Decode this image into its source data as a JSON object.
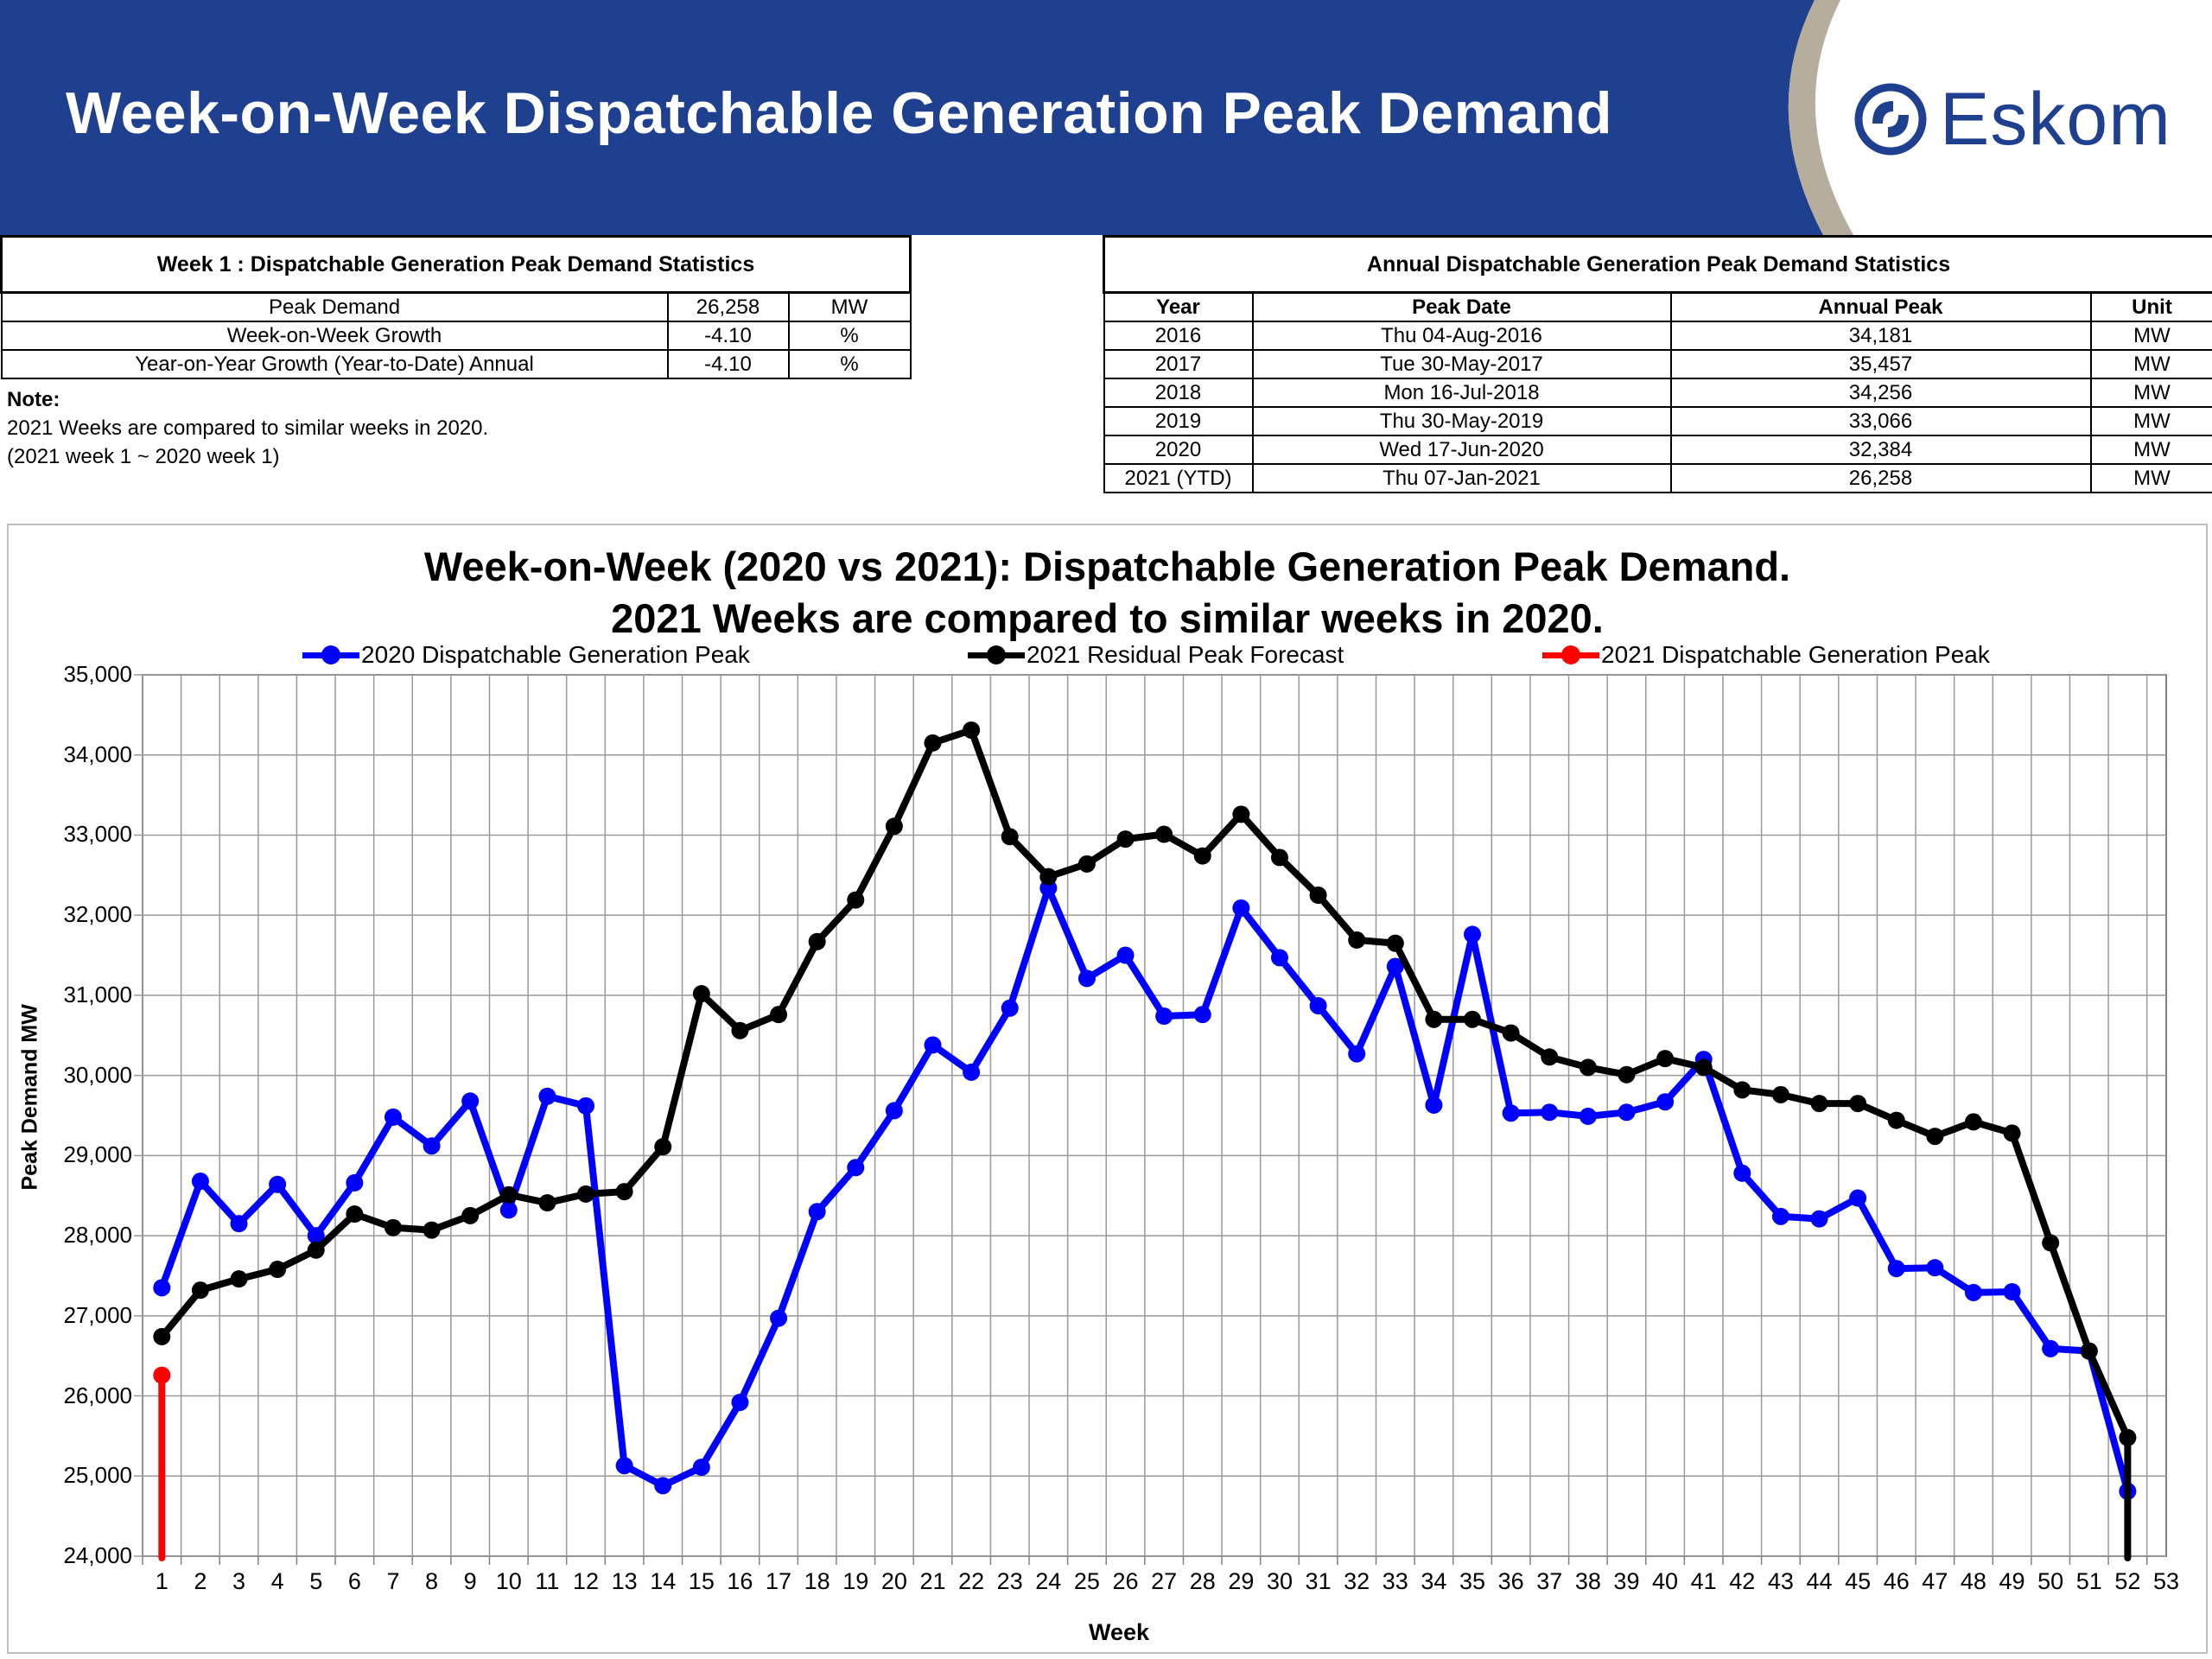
{
  "header": {
    "title": "Week-on-Week Dispatchable Generation Peak Demand",
    "logo_text": "Eskom",
    "colors": {
      "banner": "#1f3f8f",
      "accent_arc": "#b7ad9c"
    }
  },
  "weekly_stats": {
    "caption": "Week 1 : Dispatchable Generation Peak Demand Statistics",
    "rows": [
      {
        "label": "Peak Demand",
        "value": "26,258",
        "unit": "MW"
      },
      {
        "label": "Week-on-Week Growth",
        "value": "-4.10",
        "unit": "%"
      },
      {
        "label": "Year-on-Year Growth (Year-to-Date) Annual",
        "value": "-4.10",
        "unit": "%"
      }
    ]
  },
  "note": {
    "heading": "Note:",
    "line1": "2021 Weeks are compared to similar weeks in 2020.",
    "line2": "(2021 week 1 ~ 2020 week 1)"
  },
  "annual_stats": {
    "caption": "Annual Dispatchable Generation Peak Demand Statistics",
    "headers": [
      "Year",
      "Peak Date",
      "Annual Peak",
      "Unit"
    ],
    "rows": [
      [
        "2016",
        "Thu 04-Aug-2016",
        "34,181",
        "MW"
      ],
      [
        "2017",
        "Tue 30-May-2017",
        "35,457",
        "MW"
      ],
      [
        "2018",
        "Mon 16-Jul-2018",
        "34,256",
        "MW"
      ],
      [
        "2019",
        "Thu 30-May-2019",
        "33,066",
        "MW"
      ],
      [
        "2020",
        "Wed 17-Jun-2020",
        "32,384",
        "MW"
      ],
      [
        "2021 (YTD)",
        "Thu 07-Jan-2021",
        "26,258",
        "MW"
      ]
    ]
  },
  "chart_data": {
    "type": "line",
    "title_line1": "Week-on-Week (2020 vs 2021): Dispatchable Generation Peak Demand.",
    "title_line2": "2021 Weeks are compared to similar weeks in 2020.",
    "xlabel": "Week",
    "ylabel": "Peak Demand MW",
    "ylim": [
      24000,
      35000
    ],
    "y_ticks": [
      "24,000",
      "25,000",
      "26,000",
      "27,000",
      "28,000",
      "29,000",
      "30,000",
      "31,000",
      "32,000",
      "33,000",
      "34,000",
      "35,000"
    ],
    "x": [
      1,
      2,
      3,
      4,
      5,
      6,
      7,
      8,
      9,
      10,
      11,
      12,
      13,
      14,
      15,
      16,
      17,
      18,
      19,
      20,
      21,
      22,
      23,
      24,
      25,
      26,
      27,
      28,
      29,
      30,
      31,
      32,
      33,
      34,
      35,
      36,
      37,
      38,
      39,
      40,
      41,
      42,
      43,
      44,
      45,
      46,
      47,
      48,
      49,
      50,
      51,
      52,
      53
    ],
    "grid": true,
    "legend_position": "top",
    "series": [
      {
        "name": "2020 Dispatchable Generation Peak",
        "color": "#0000ff",
        "values": [
          27350,
          28680,
          28150,
          28640,
          28000,
          28660,
          29480,
          29120,
          29680,
          28320,
          29740,
          29620,
          25130,
          24880,
          25110,
          25920,
          26970,
          28300,
          28850,
          29560,
          30380,
          30040,
          30840,
          32340,
          31210,
          31500,
          30740,
          30760,
          32090,
          31470,
          30870,
          30270,
          31360,
          29630,
          31760,
          29530,
          29540,
          29490,
          29540,
          29670,
          30200,
          28780,
          28240,
          28210,
          28470,
          27590,
          27600,
          27290,
          27300,
          26590,
          26560,
          24810,
          null
        ]
      },
      {
        "name": "2021 Residual Peak Forecast",
        "color": "#000000",
        "values": [
          26740,
          27320,
          27460,
          27580,
          27820,
          28270,
          28100,
          28070,
          28250,
          28510,
          28410,
          28520,
          28550,
          29110,
          31020,
          30560,
          30760,
          31670,
          32190,
          33110,
          34150,
          34310,
          32980,
          32480,
          32640,
          32950,
          33010,
          32740,
          33260,
          32720,
          32250,
          31690,
          31650,
          30700,
          30700,
          30530,
          30230,
          30100,
          30010,
          30210,
          30100,
          29820,
          29760,
          29650,
          29650,
          29440,
          29240,
          29420,
          29280,
          27910,
          26560,
          25480,
          null
        ]
      },
      {
        "name": "2021 Dispatchable Generation Peak",
        "color": "#ff0000",
        "values": [
          26258,
          null,
          null,
          null,
          null,
          null,
          null,
          null,
          null,
          null,
          null,
          null,
          null,
          null,
          null,
          null,
          null,
          null,
          null,
          null,
          null,
          null,
          null,
          null,
          null,
          null,
          null,
          null,
          null,
          null,
          null,
          null,
          null,
          null,
          null,
          null,
          null,
          null,
          null,
          null,
          null,
          null,
          null,
          null,
          null,
          null,
          null,
          null,
          null,
          null,
          null,
          null,
          null
        ]
      }
    ]
  }
}
